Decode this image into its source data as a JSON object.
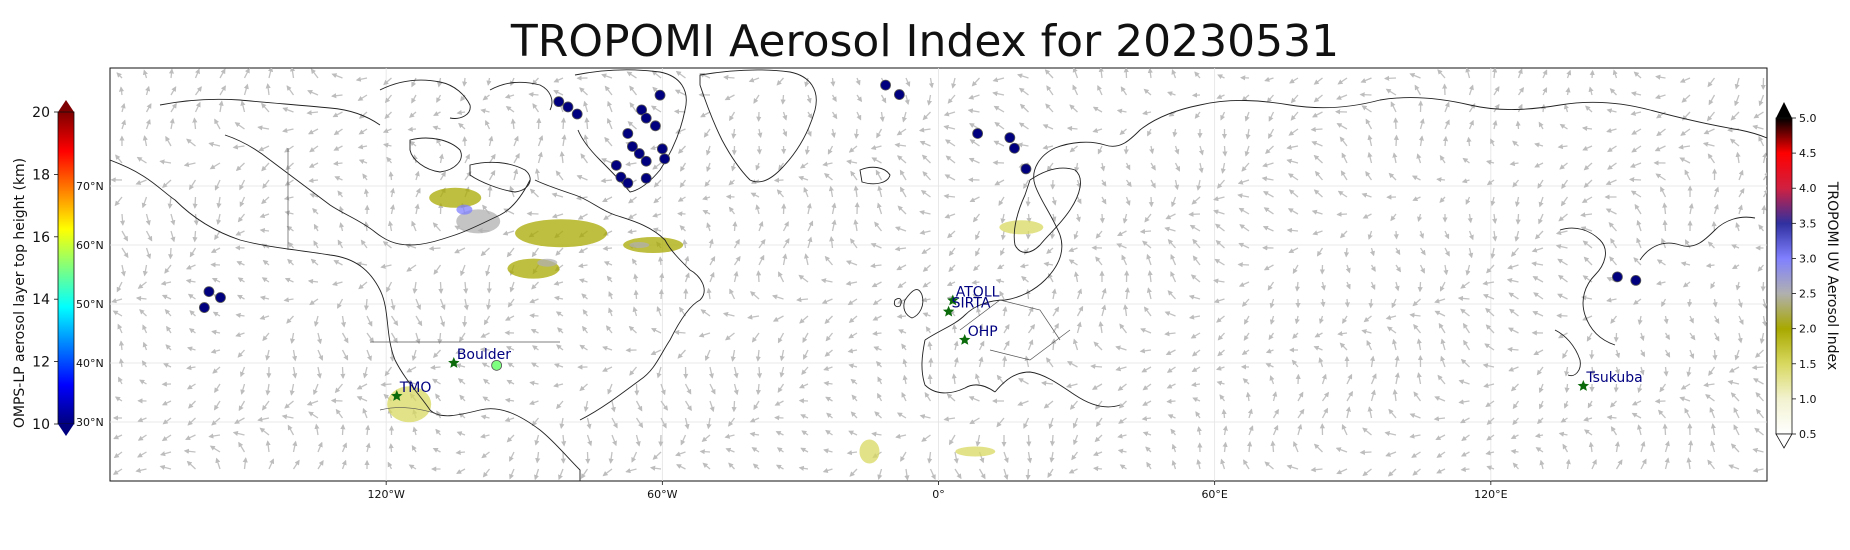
{
  "title": "TROPOMI Aerosol Index for 20230531",
  "map": {
    "lon_range": [
      -180,
      180
    ],
    "lat_range": [
      20,
      90
    ],
    "lon_ticks": [
      {
        "lon": -120,
        "label": "120°W"
      },
      {
        "lon": -60,
        "label": "60°W"
      },
      {
        "lon": 0,
        "label": "0°"
      },
      {
        "lon": 60,
        "label": "60°E"
      },
      {
        "lon": 120,
        "label": "120°E"
      }
    ],
    "lat_ticks": [
      {
        "lat": 30,
        "label": "30°N"
      },
      {
        "lat": 40,
        "label": "40°N"
      },
      {
        "lat": 50,
        "label": "50°N"
      },
      {
        "lat": 60,
        "label": "60°N"
      },
      {
        "lat": 70,
        "label": "70°N"
      }
    ],
    "land_color": "#ffffff",
    "coast_color": "#222222",
    "wind_arrow_color": "#c2c2c2"
  },
  "left_colorbar": {
    "label": "OMPS-LP aerosol layer top height (km)",
    "ticks": [
      10,
      12,
      14,
      16,
      18,
      20
    ],
    "min": 10,
    "max": 20,
    "colors": [
      "#00007f",
      "#0000ff",
      "#007fff",
      "#00ffff",
      "#7fff7f",
      "#ffff00",
      "#ff7f00",
      "#ff0000",
      "#7f0000"
    ]
  },
  "right_colorbar": {
    "label": "TROPOMI UV Aerosol Index",
    "ticks": [
      "0.5",
      "1.0",
      "1.5",
      "2.0",
      "2.5",
      "3.0",
      "3.5",
      "4.0",
      "4.5",
      "5.0"
    ],
    "min": 0.5,
    "max": 5.0,
    "colors": [
      "#ffffff",
      "#f2f2d0",
      "#d8d860",
      "#a8a800",
      "#b0b0b0",
      "#8080ff",
      "#3030a0",
      "#d02040",
      "#ff0000",
      "#000000"
    ]
  },
  "sites": [
    {
      "name": "TMO",
      "lon": -117.7,
      "lat": 34.4
    },
    {
      "name": "Boulder",
      "lon": -105.3,
      "lat": 40.0
    },
    {
      "name": "ATOLL",
      "lon": 3.1,
      "lat": 50.6
    },
    {
      "name": "SIRTA",
      "lon": 2.2,
      "lat": 48.7
    },
    {
      "name": "OHP",
      "lon": 5.7,
      "lat": 43.9
    },
    {
      "name": "Tsukuba",
      "lon": 140.1,
      "lat": 36.1
    }
  ],
  "omps_points": [
    {
      "lon": -82.5,
      "lat": 84.3,
      "height": 10
    },
    {
      "lon": -80.5,
      "lat": 83.4,
      "height": 10
    },
    {
      "lon": -78.5,
      "lat": 82.2,
      "height": 10
    },
    {
      "lon": -60.5,
      "lat": 85.4,
      "height": 10
    },
    {
      "lon": -64.5,
      "lat": 82.9,
      "height": 10
    },
    {
      "lon": -63.5,
      "lat": 81.5,
      "height": 10
    },
    {
      "lon": -61.5,
      "lat": 80.2,
      "height": 10
    },
    {
      "lon": -67.5,
      "lat": 78.9,
      "height": 10
    },
    {
      "lon": -66.5,
      "lat": 76.7,
      "height": 10
    },
    {
      "lon": -65.0,
      "lat": 75.5,
      "height": 10
    },
    {
      "lon": -63.5,
      "lat": 74.2,
      "height": 10
    },
    {
      "lon": -60.0,
      "lat": 76.3,
      "height": 10
    },
    {
      "lon": -59.5,
      "lat": 74.6,
      "height": 10
    },
    {
      "lon": -70.0,
      "lat": 73.5,
      "height": 10
    },
    {
      "lon": -69.0,
      "lat": 71.5,
      "height": 10
    },
    {
      "lon": -67.5,
      "lat": 70.5,
      "height": 10
    },
    {
      "lon": -63.5,
      "lat": 71.3,
      "height": 10
    },
    {
      "lon": -11.5,
      "lat": 87.1,
      "height": 10
    },
    {
      "lon": -8.5,
      "lat": 85.5,
      "height": 10
    },
    {
      "lon": 8.5,
      "lat": 78.9,
      "height": 10
    },
    {
      "lon": 15.5,
      "lat": 78.2,
      "height": 10
    },
    {
      "lon": 16.5,
      "lat": 76.4,
      "height": 10
    },
    {
      "lon": 19.0,
      "lat": 72.9,
      "height": 10
    },
    {
      "lon": -158.5,
      "lat": 52.1,
      "height": 10
    },
    {
      "lon": -156.0,
      "lat": 51.1,
      "height": 10
    },
    {
      "lon": -159.5,
      "lat": 49.4,
      "height": 10
    },
    {
      "lon": 147.5,
      "lat": 54.6,
      "height": 10
    },
    {
      "lon": 151.5,
      "lat": 54.0,
      "height": 10
    },
    {
      "lon": -96.0,
      "lat": 39.6,
      "height": 15
    }
  ],
  "ai_plumes": [
    {
      "lon": -105,
      "lat": 68,
      "rx": 26,
      "ry": 10,
      "level": 1.8
    },
    {
      "lon": -100,
      "lat": 64,
      "rx": 22,
      "ry": 12,
      "level": 2.3
    },
    {
      "lon": -103,
      "lat": 66,
      "rx": 8,
      "ry": 5,
      "level": 3.0
    },
    {
      "lon": -82,
      "lat": 62,
      "rx": 46,
      "ry": 14,
      "level": 1.8
    },
    {
      "lon": -88,
      "lat": 56,
      "rx": 26,
      "ry": 10,
      "level": 1.9
    },
    {
      "lon": -85,
      "lat": 57,
      "rx": 10,
      "ry": 4,
      "level": 2.6
    },
    {
      "lon": -62,
      "lat": 60,
      "rx": 30,
      "ry": 8,
      "level": 1.9
    },
    {
      "lon": -65,
      "lat": 60,
      "rx": 10,
      "ry": 3,
      "level": 2.6
    },
    {
      "lon": 18,
      "lat": 63,
      "rx": 22,
      "ry": 7,
      "level": 1.6
    },
    {
      "lon": -115,
      "lat": 33,
      "rx": 22,
      "ry": 18,
      "level": 1.3
    },
    {
      "lon": -15,
      "lat": 25,
      "rx": 10,
      "ry": 12,
      "level": 1.6
    },
    {
      "lon": 8,
      "lat": 25,
      "rx": 20,
      "ry": 5,
      "level": 1.3
    }
  ]
}
